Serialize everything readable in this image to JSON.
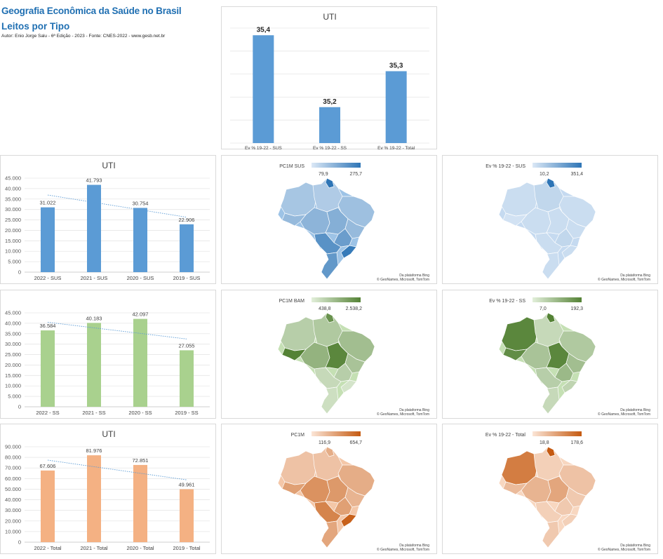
{
  "header": {
    "title_line1": "Geografia Econômica da Saúde no Brasil",
    "title_line2": "Leitos por Tipo",
    "credit": "Autor: Enio Jorge Salu - 6ª Edição - 2023 - Fonte: CNES-2022 - www.gesb.net.br"
  },
  "chart_data": [
    {
      "id": "top",
      "type": "bar",
      "title": "UTI",
      "categories": [
        "Ev % 19-22 - SUS",
        "Ev % 19-22 - SS",
        "Ev % 19-22 - Total"
      ],
      "values": [
        35.4,
        35.2,
        35.3
      ],
      "value_labels": [
        "35,4",
        "35,2",
        "35,3"
      ],
      "ylim": [
        35.1,
        35.42
      ],
      "gridlines": true,
      "color": "#5b9bd5"
    },
    {
      "id": "sus",
      "type": "bar",
      "title": "UTI",
      "categories": [
        "2022 - SUS",
        "2021 - SUS",
        "2020 - SUS",
        "2019 - SUS"
      ],
      "values": [
        31022,
        41793,
        30754,
        22906
      ],
      "value_labels": [
        "31.022",
        "41.793",
        "30.754",
        "22.906"
      ],
      "yticks": [
        "0",
        "5.000",
        "10.000",
        "15.000",
        "20.000",
        "25.000",
        "30.000",
        "35.000",
        "40.000",
        "45.000"
      ],
      "ylim": [
        0,
        45000
      ],
      "trendline": true,
      "color": "#5b9bd5"
    },
    {
      "id": "ss",
      "type": "bar",
      "title": "",
      "categories": [
        "2022 - SS",
        "2021 - SS",
        "2020 - SS",
        "2019 - SS"
      ],
      "values": [
        36584,
        40183,
        42097,
        27055
      ],
      "value_labels": [
        "36.584",
        "40.183",
        "42.097",
        "27.055"
      ],
      "yticks": [
        "0",
        "5.000",
        "10.000",
        "15.000",
        "20.000",
        "25.000",
        "30.000",
        "35.000",
        "40.000",
        "45.000"
      ],
      "ylim": [
        0,
        45000
      ],
      "trendline": true,
      "color": "#a9d18e"
    },
    {
      "id": "total",
      "type": "bar",
      "title": "UTI",
      "categories": [
        "2022 - Total",
        "2021 - Total",
        "2020 - Total",
        "2019 - Total"
      ],
      "values": [
        67606,
        81976,
        72851,
        49961
      ],
      "value_labels": [
        "67.606",
        "81.976",
        "72.851",
        "49.961"
      ],
      "yticks": [
        "0",
        "10.000",
        "20.000",
        "30.000",
        "40.000",
        "50.000",
        "60.000",
        "70.000",
        "80.000",
        "90.000"
      ],
      "ylim": [
        0,
        90000
      ],
      "trendline": true,
      "color": "#f4b183"
    }
  ],
  "maps": [
    {
      "id": "m1",
      "legend_title": "PC1M SUS",
      "min": "79,9",
      "max": "275,7",
      "color_light": "#dbe8f6",
      "color_dark": "#2e75b6",
      "base": "#9dc3e6"
    },
    {
      "id": "m2",
      "legend_title": "Ev % 19-22 - SUS",
      "min": "10,2",
      "max": "351,4",
      "color_light": "#dbe8f6",
      "color_dark": "#2e75b6",
      "base": "#c5daf0"
    },
    {
      "id": "m3",
      "legend_title": "PC1M BAM",
      "min": "438,8",
      "max": "2.538,2",
      "color_light": "#e2efda",
      "color_dark": "#548235",
      "base": "#c5e0b4"
    },
    {
      "id": "m4",
      "legend_title": "Ev % 19-22 - SS",
      "min": "7,0",
      "max": "192,3",
      "color_light": "#e2efda",
      "color_dark": "#548235",
      "base": "#c5e0b4"
    },
    {
      "id": "m5",
      "legend_title": "PC1M",
      "min": "116,9",
      "max": "654,7",
      "color_light": "#fbe5d6",
      "color_dark": "#c55a11",
      "base": "#f4c7a8"
    },
    {
      "id": "m6",
      "legend_title": "Ev % 19-22 - Total",
      "min": "18,8",
      "max": "178,6",
      "color_light": "#fbe5d6",
      "color_dark": "#c55a11",
      "base": "#f8d7c0"
    }
  ],
  "map_attribution_line1": "Da plataforma Bing",
  "map_attribution_line2": "© GeoNames, Microsoft, TomTom"
}
